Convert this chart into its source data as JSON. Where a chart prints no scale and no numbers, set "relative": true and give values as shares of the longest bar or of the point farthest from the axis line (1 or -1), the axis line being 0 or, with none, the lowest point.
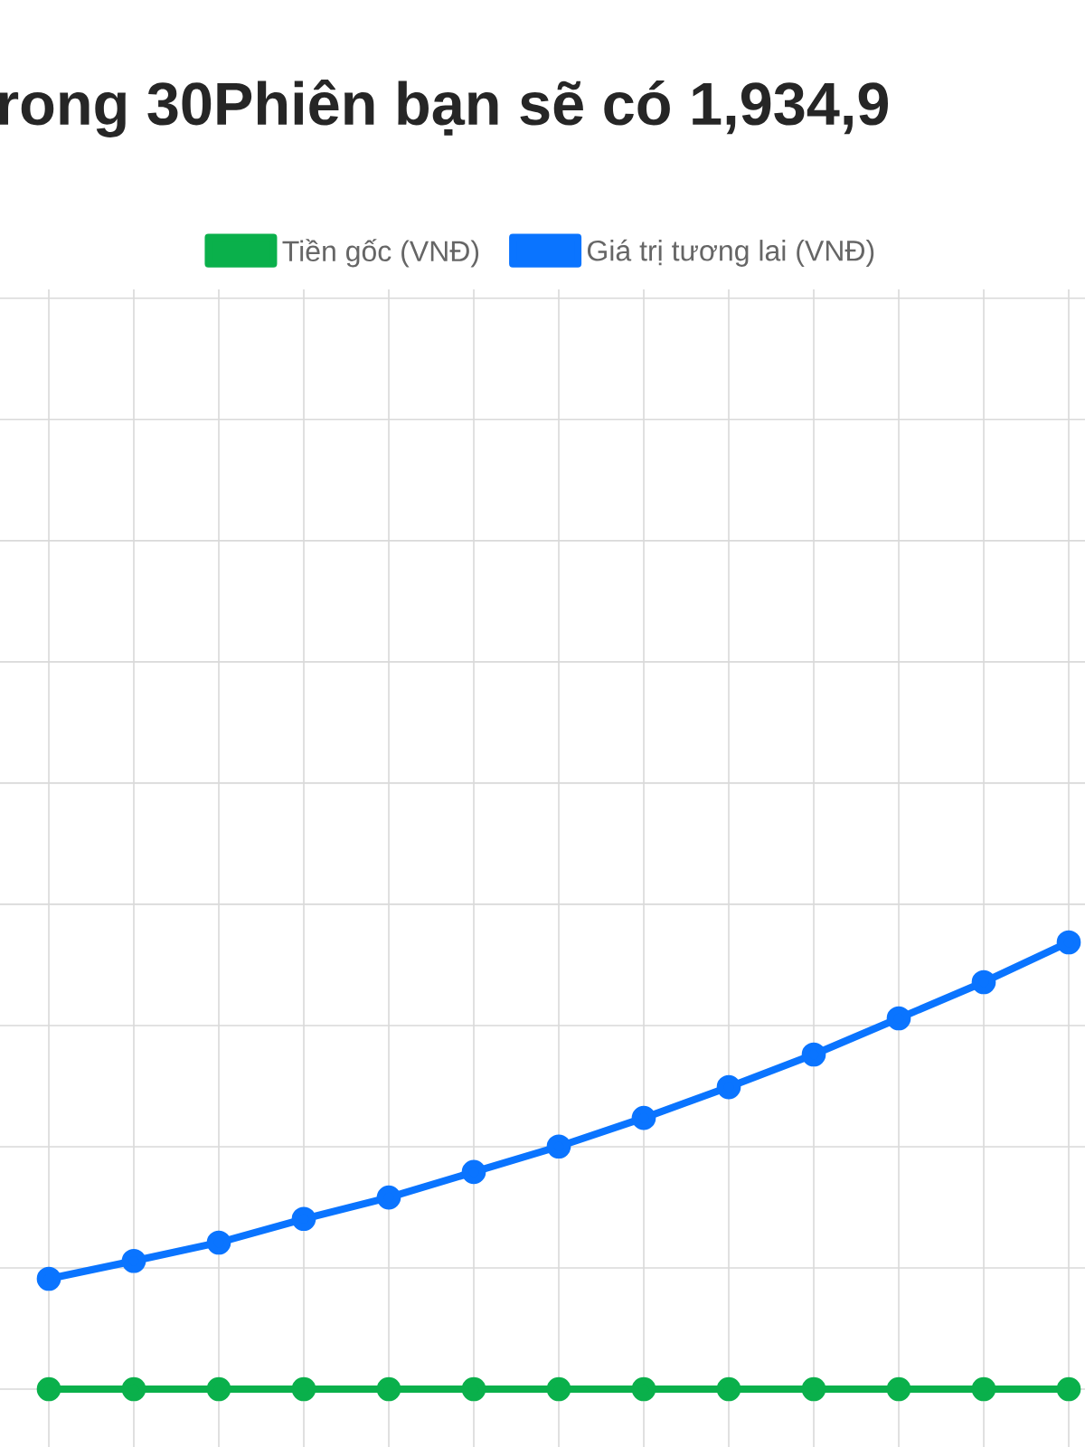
{
  "chart_data": {
    "type": "line",
    "title": "rong 30Phiên bạn sẽ có 1,934,9",
    "relative": true,
    "categories": [
      null,
      null,
      null,
      null,
      null,
      null,
      null,
      null,
      null,
      null,
      null,
      null,
      null
    ],
    "series": [
      {
        "name": "Tiền gốc (VNĐ)",
        "color": "#0ab04b",
        "values": [
          0,
          0,
          0,
          0,
          0,
          0,
          0,
          0,
          0,
          0,
          0,
          0,
          0
        ]
      },
      {
        "name": "Giá trị tương lai (VNĐ)",
        "color": "#0a74ff",
        "values": [
          0.247,
          0.287,
          0.328,
          0.381,
          0.429,
          0.486,
          0.543,
          0.607,
          0.676,
          0.749,
          0.83,
          0.911,
          1
        ]
      }
    ],
    "grid": true,
    "legend": "top",
    "marker": "circle",
    "line_style": "solid"
  }
}
